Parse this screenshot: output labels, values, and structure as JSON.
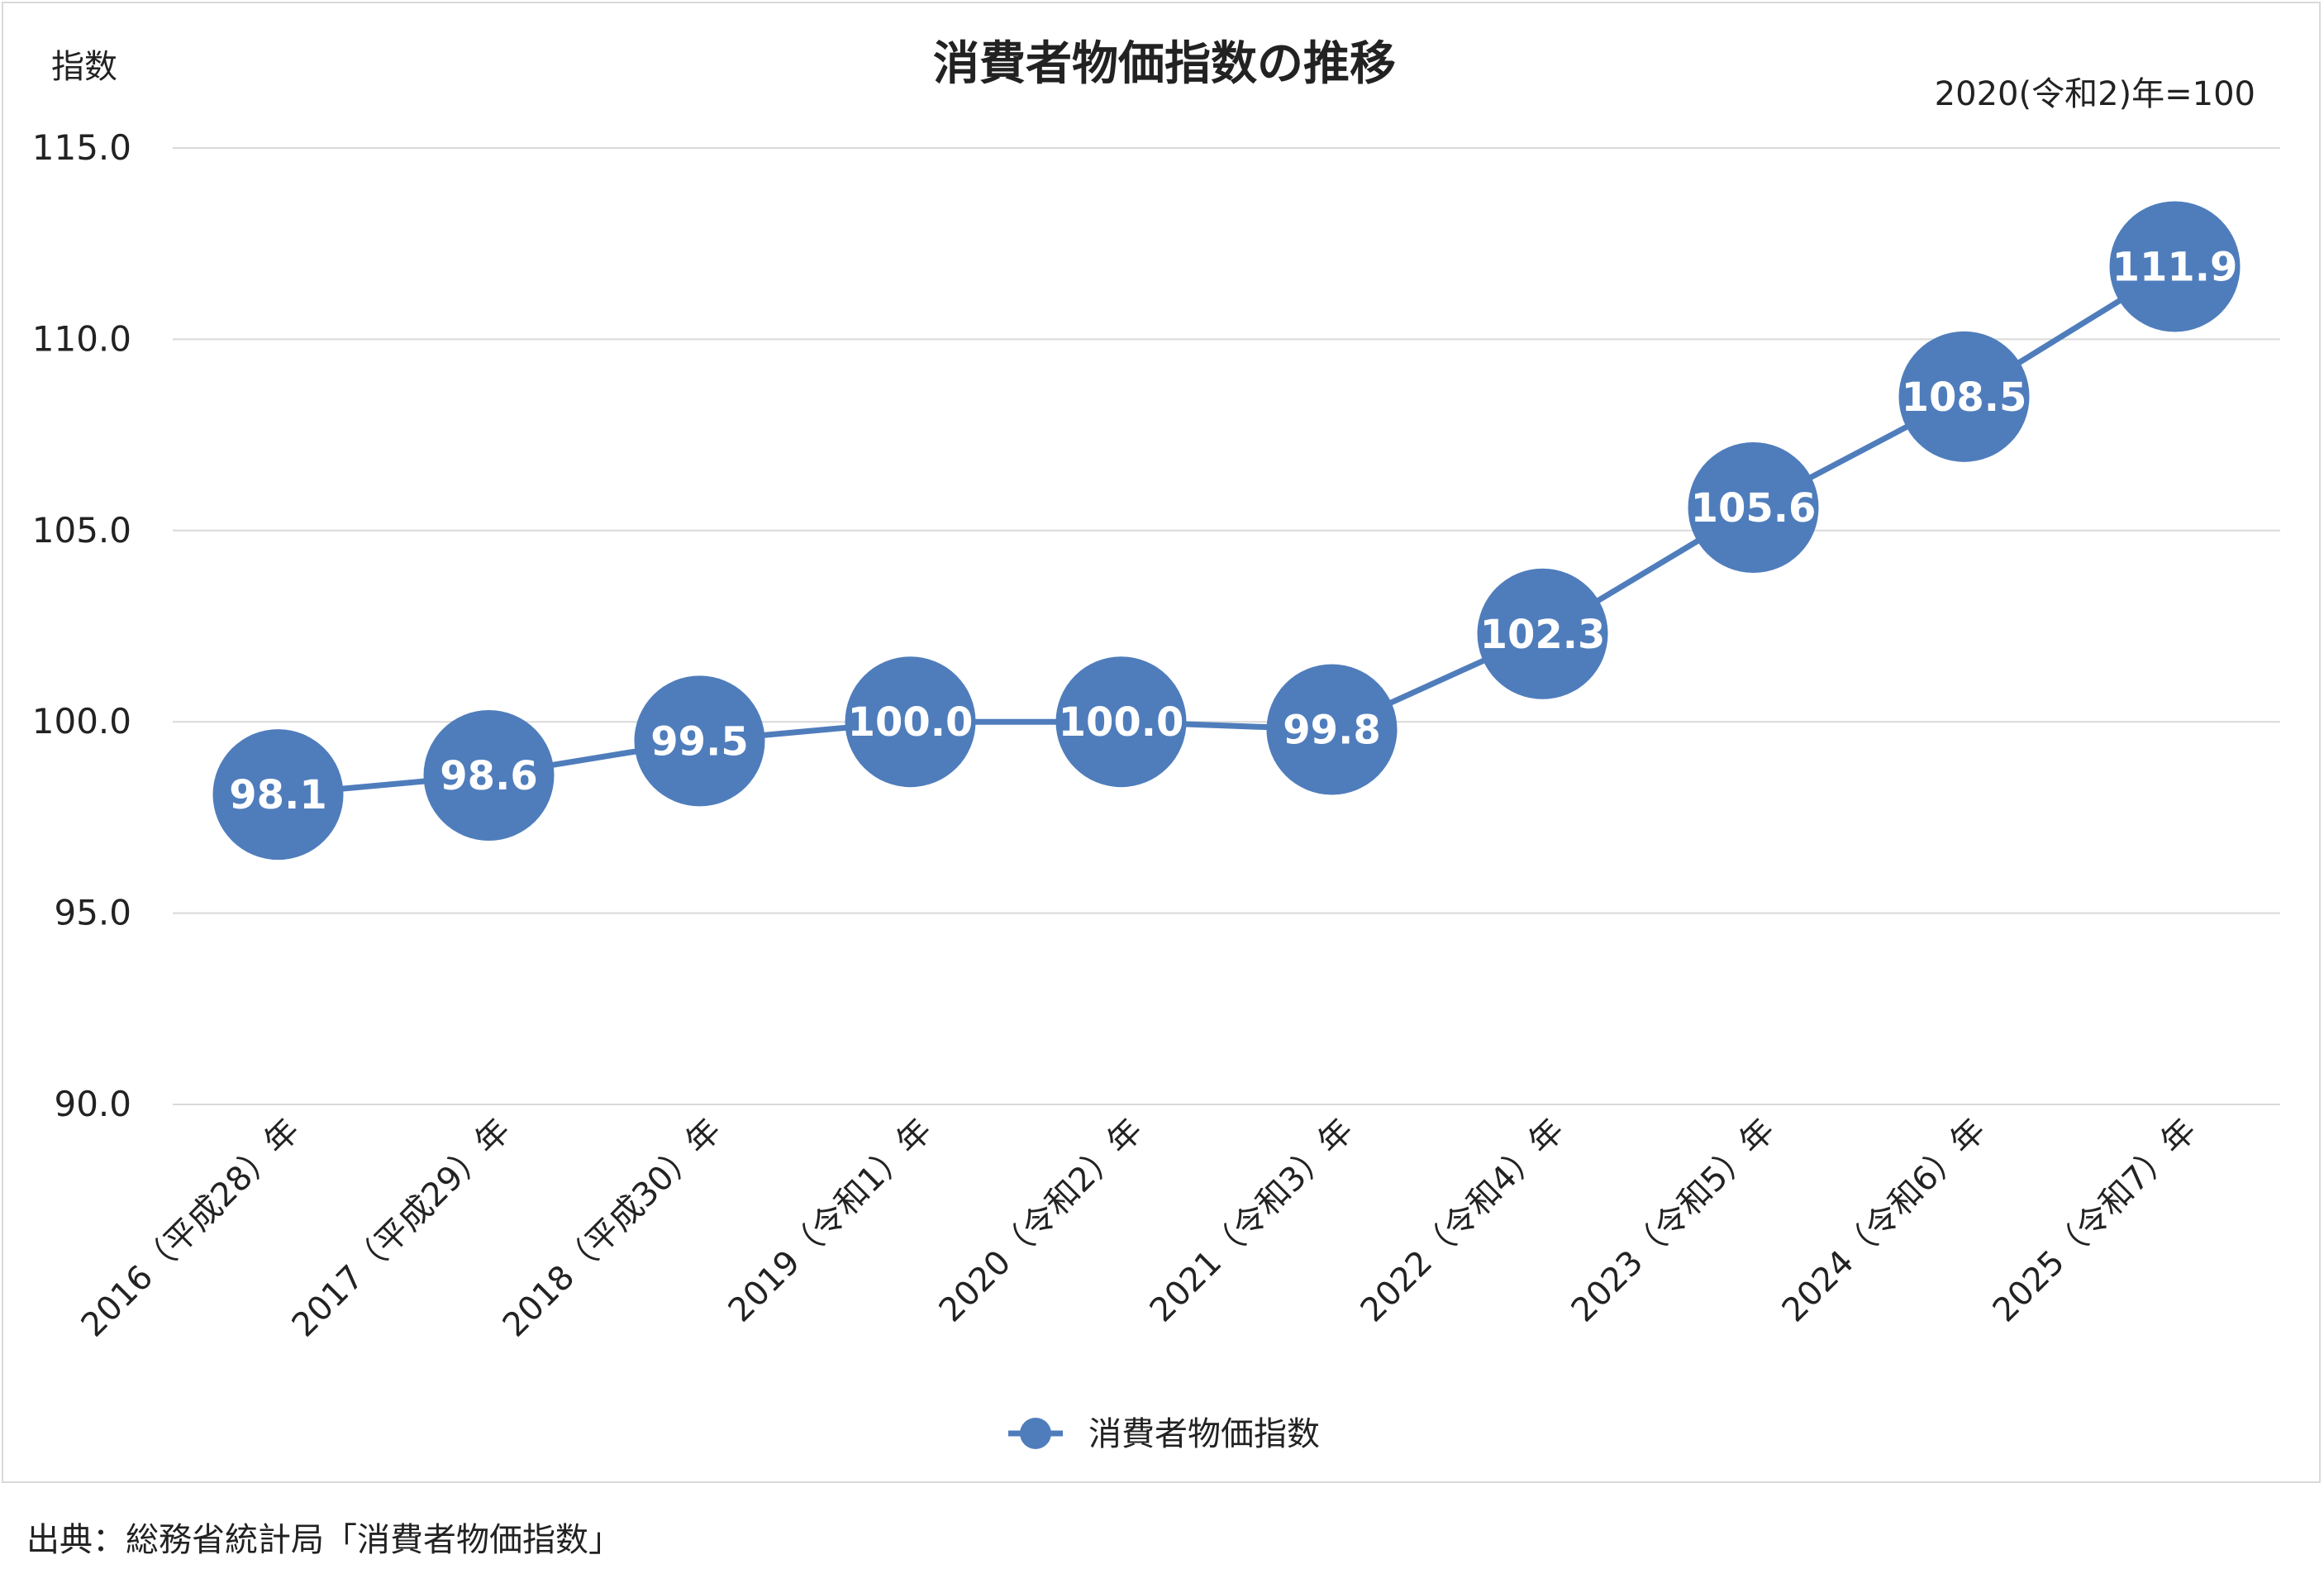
{
  "chart_data": {
    "type": "line",
    "title": "消費者物価指数の推移",
    "ylabel": "指数",
    "base_note": "2020(令和2)年=100",
    "categories": [
      "2016（平成28）年",
      "2017（平成29）年",
      "2018（平成30）年",
      "2019（令和1）年",
      "2020（令和2）年",
      "2021（令和3）年",
      "2022（令和4）年",
      "2023（令和5）年",
      "2024（令和6）年",
      "2025（令和7）年"
    ],
    "series": [
      {
        "name": "消費者物価指数",
        "values": [
          98.1,
          98.6,
          99.5,
          100.0,
          100.0,
          99.8,
          102.3,
          105.6,
          108.5,
          111.9
        ]
      }
    ],
    "data_labels": [
      "98.1",
      "98.6",
      "99.5",
      "100.0",
      "100.0",
      "99.8",
      "102.3",
      "105.6",
      "108.5",
      "111.9"
    ],
    "yticks": [
      "90.0",
      "95.0",
      "100.0",
      "105.0",
      "110.0",
      "115.0"
    ],
    "ytick_values": [
      90,
      95,
      100,
      105,
      110,
      115
    ],
    "ylim": [
      90,
      115
    ],
    "grid": true,
    "legend": "bottom-center",
    "colors": {
      "series": "#4f7dbc",
      "grid": "#d9d9d9",
      "label": "#ffffff"
    }
  },
  "source": "出典：総務省統計局「消費者物価指数」"
}
